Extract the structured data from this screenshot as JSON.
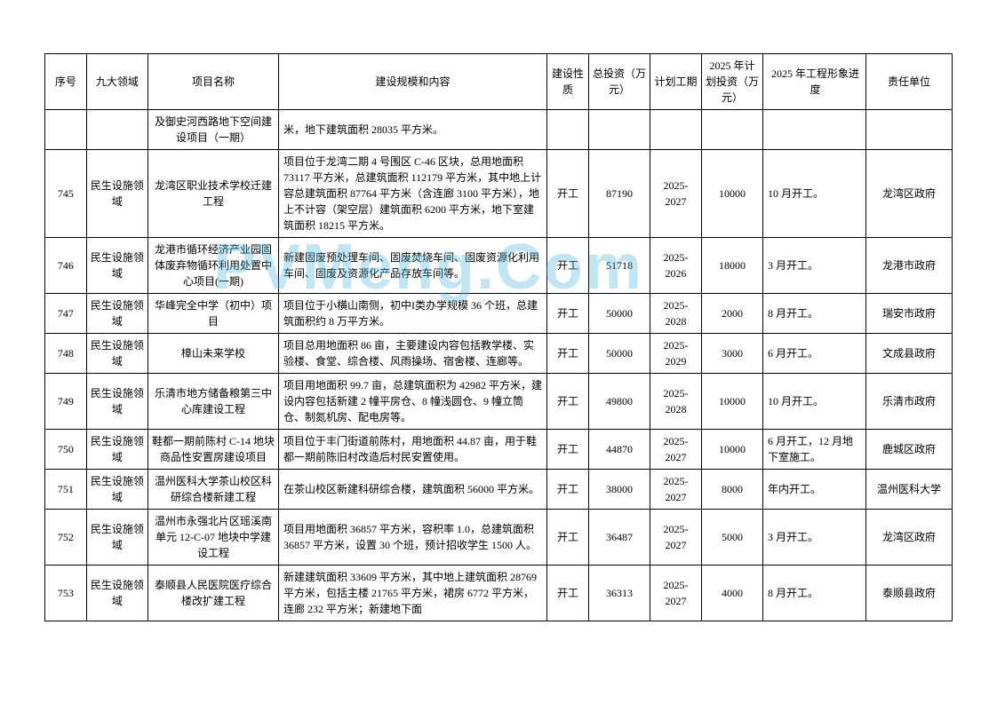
{
  "watermark": "PVMeng.Com",
  "headers": {
    "seq": "序号",
    "domain": "九大领域",
    "name": "项目名称",
    "content": "建设规模和内容",
    "nature": "建设性质",
    "invest": "总投资（万元）",
    "period": "计划工期",
    "plan_invest": "2025 年计划投资（万元）",
    "progress": "2025 年工程形象进度",
    "unit": "责任单位"
  },
  "rows": [
    {
      "seq": "",
      "domain": "",
      "name": "及御史河西路地下空间建设项目（一期）",
      "content": "米，地下建筑面积 28035 平方米。",
      "nature": "",
      "invest": "",
      "period": "",
      "plan": "",
      "progress": "",
      "unit": ""
    },
    {
      "seq": "745",
      "domain": "民生设施领域",
      "name": "龙湾区职业技术学校迁建工程",
      "content": "项目位于龙湾二期 4 号围区 C-46 区块，总用地面积 73117 平方米，总建筑面积 112179 平方米，其中地上计容总建筑面积 87764 平方米（含连廊 3100 平方米），地上不计容（架空层）建筑面积 6200 平方米，地下室建筑面积 18215 平方米。",
      "nature": "开工",
      "invest": "87190",
      "period": "2025-2027",
      "plan": "10000",
      "progress": "10 月开工。",
      "unit": "龙湾区政府"
    },
    {
      "seq": "746",
      "domain": "民生设施领域",
      "name": "龙港市循环经济产业园固体废弃物循环利用处置中心项目(一期)",
      "content": "新建固废预处理车间、固废焚烧车间、固废资源化利用车间、固废及资源化产品存放车间等。",
      "nature": "开工",
      "invest": "51718",
      "period": "2025-2026",
      "plan": "18000",
      "progress": "3 月开工。",
      "unit": "龙港市政府"
    },
    {
      "seq": "747",
      "domain": "民生设施领域",
      "name": "华峰完全中学（初中）项目",
      "content": "项目位于小横山南侧，初中I类办学规模 36 个班，总建筑面积约 8 万平方米。",
      "nature": "开工",
      "invest": "50000",
      "period": "2025-2028",
      "plan": "2000",
      "progress": "8 月开工。",
      "unit": "瑞安市政府"
    },
    {
      "seq": "748",
      "domain": "民生设施领域",
      "name": "樟山未来学校",
      "content": "项目总用地面积 86 亩，主要建设内容包括教学楼、实验楼、食堂、综合楼、风雨操场、宿舍楼、连廊等。",
      "nature": "开工",
      "invest": "50000",
      "period": "2025-2029",
      "plan": "3000",
      "progress": "6 月开工。",
      "unit": "文成县政府"
    },
    {
      "seq": "749",
      "domain": "民生设施领域",
      "name": "乐清市地方储备粮第三中心库建设工程",
      "content": "项目用地面积 99.7 亩，总建筑面积为 42982 平方米，建设内容包括新建 2 幢平房仓、8 幢浅圆仓、9 幢立筒仓、制氮机房、配电房等。",
      "nature": "开工",
      "invest": "49800",
      "period": "2025-2028",
      "plan": "10000",
      "progress": "10 月开工。",
      "unit": "乐清市政府"
    },
    {
      "seq": "750",
      "domain": "民生设施领域",
      "name": "鞋都一期前陈村 C-14 地块商品性安置房建设项目",
      "content": "项目位于丰门街道前陈村，用地面积 44.87 亩，用于鞋都一期前陈旧村改造后村民安置使用。",
      "nature": "开工",
      "invest": "44870",
      "period": "2025-2027",
      "plan": "10000",
      "progress": "6 月开工，12 月地下室施工。",
      "unit": "鹿城区政府"
    },
    {
      "seq": "751",
      "domain": "民生设施领域",
      "name": "温州医科大学茶山校区科研综合楼新建工程",
      "content": "在茶山校区新建科研综合楼，建筑面积 56000 平方米。",
      "nature": "开工",
      "invest": "38000",
      "period": "2025-2027",
      "plan": "8000",
      "progress": "年内开工。",
      "unit": "温州医科大学"
    },
    {
      "seq": "752",
      "domain": "民生设施领域",
      "name": "温州市永强北片区瑶溪南单元 12-C-07 地块中学建设工程",
      "content": "项目用地面积 36857 平方米，容积率 1.0，总建筑面积 36857 平方米，设置 30 个班，预计招收学生 1500 人。",
      "nature": "开工",
      "invest": "36487",
      "period": "2025-2027",
      "plan": "5000",
      "progress": "3 月开工。",
      "unit": "龙湾区政府"
    },
    {
      "seq": "753",
      "domain": "民生设施领域",
      "name": "泰顺县人民医院医疗综合楼改扩建工程",
      "content": "新建建筑面积 33609 平方米，其中地上建筑面积 28769 平方米，包括主楼 21765 平方米，裙房 6772 平方米，连廊 232 平方米；新建地下面",
      "nature": "开工",
      "invest": "36313",
      "period": "2025-2027",
      "plan": "4000",
      "progress": "8 月开工。",
      "unit": "泰顺县政府"
    }
  ]
}
